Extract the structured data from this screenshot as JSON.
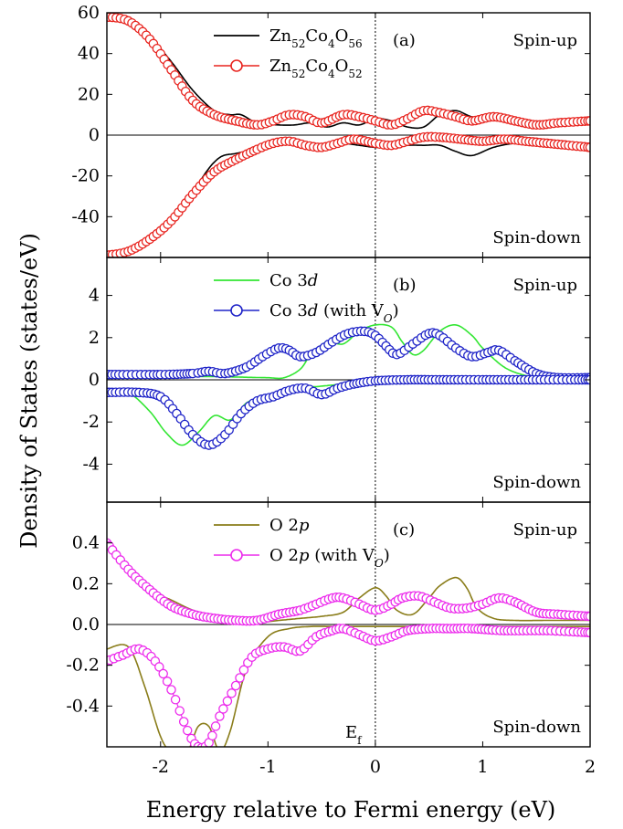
{
  "figure": {
    "ylabel": "Density of States (states/eV)",
    "xlabel": "Energy relative to Fermi energy (eV)",
    "fermi_label": "E",
    "fermi_label_sub": "f"
  },
  "chart_data": [
    {
      "type": "line",
      "panel_label": "(a)",
      "annotations": {
        "up": "Spin-up",
        "down": "Spin-down"
      },
      "xlim": [
        -2.5,
        2.0
      ],
      "ylim": [
        -60,
        60
      ],
      "x_ticks": [],
      "y_ticks": [
        60,
        40,
        20,
        0,
        -20,
        -40
      ],
      "legend": [
        {
          "parts": [
            [
              "Zn",
              "n"
            ],
            [
              "52",
              "s"
            ],
            [
              "Co",
              "n"
            ],
            [
              "4",
              "s"
            ],
            [
              "O",
              "n"
            ],
            [
              "56",
              "s"
            ]
          ],
          "style": "line",
          "color": "#000000"
        },
        {
          "parts": [
            [
              "Zn",
              "n"
            ],
            [
              "52",
              "s"
            ],
            [
              "Co",
              "n"
            ],
            [
              "4",
              "s"
            ],
            [
              "O",
              "n"
            ],
            [
              "52",
              "s"
            ]
          ],
          "style": "circle-line",
          "color": "#e8241f"
        }
      ],
      "series": [
        {
          "style": "line",
          "color": "#000000",
          "x": [
            -2.5,
            -2.3,
            -2.1,
            -1.9,
            -1.7,
            -1.5,
            -1.35,
            -1.25,
            -1.1,
            -0.9,
            -0.75,
            -0.6,
            -0.45,
            -0.3,
            -0.15,
            0.0,
            0.15,
            0.3,
            0.45,
            0.6,
            0.75,
            0.9,
            1.1,
            1.3,
            1.5,
            1.7,
            2.0
          ],
          "y": [
            57,
            56,
            48,
            36,
            22,
            12,
            10,
            10,
            6,
            5,
            5,
            6,
            4,
            6,
            5,
            8,
            7,
            4,
            4,
            10,
            12,
            9,
            8,
            7,
            6,
            6,
            7
          ]
        },
        {
          "style": "line",
          "color": "#000000",
          "x": [
            -2.5,
            -2.2,
            -2.0,
            -1.8,
            -1.6,
            -1.45,
            -1.3,
            -1.1,
            -0.9,
            -0.75,
            -0.6,
            -0.45,
            -0.3,
            -0.15,
            0.0,
            0.15,
            0.3,
            0.45,
            0.6,
            0.75,
            0.9,
            1.1,
            1.3,
            1.5,
            1.7,
            2.0
          ],
          "y": [
            -59,
            -55,
            -49,
            -38,
            -20,
            -11,
            -9,
            -7,
            -4,
            -3,
            -5,
            -4,
            -4,
            -5,
            -6,
            -6,
            -5,
            -5,
            -5,
            -8,
            -10,
            -6,
            -4,
            -4,
            -5,
            -7
          ]
        },
        {
          "style": "circle-line",
          "color": "#e8241f",
          "x": [
            -2.5,
            -2.3,
            -2.1,
            -1.9,
            -1.7,
            -1.5,
            -1.3,
            -1.1,
            -0.95,
            -0.8,
            -0.65,
            -0.5,
            -0.3,
            -0.15,
            0.0,
            0.15,
            0.3,
            0.45,
            0.6,
            0.75,
            0.9,
            1.1,
            1.3,
            1.5,
            1.7,
            2.0
          ],
          "y": [
            58,
            56,
            47,
            32,
            17,
            10,
            7,
            5,
            7,
            10,
            9,
            6,
            10,
            9,
            7,
            5,
            8,
            12,
            11,
            9,
            7,
            9,
            7,
            5,
            6,
            7
          ]
        },
        {
          "style": "circle-line",
          "color": "#e8241f",
          "x": [
            -2.5,
            -2.3,
            -2.1,
            -1.9,
            -1.7,
            -1.5,
            -1.3,
            -1.1,
            -0.95,
            -0.8,
            -0.65,
            -0.5,
            -0.35,
            -0.2,
            0.0,
            0.15,
            0.3,
            0.45,
            0.6,
            0.8,
            1.0,
            1.2,
            1.4,
            1.6,
            1.8,
            2.0
          ],
          "y": [
            -59,
            -57,
            -51,
            -42,
            -29,
            -18,
            -12,
            -7,
            -4,
            -3,
            -5,
            -6,
            -4,
            -2,
            -4,
            -5,
            -3,
            -1,
            -1,
            -2,
            -3,
            -2,
            -3,
            -4,
            -5,
            -6
          ]
        }
      ]
    },
    {
      "type": "line",
      "panel_label": "(b)",
      "annotations": {
        "up": "Spin-up",
        "down": "Spin-down"
      },
      "xlim": [
        -2.5,
        2.0
      ],
      "ylim": [
        -5.8,
        5.8
      ],
      "x_ticks": [],
      "y_ticks": [
        4,
        2,
        0,
        -2,
        -4
      ],
      "legend": [
        {
          "parts": [
            [
              "Co 3",
              "n"
            ],
            [
              "d",
              "i"
            ]
          ],
          "style": "line",
          "color": "#33e633"
        },
        {
          "parts": [
            [
              "Co 3",
              "n"
            ],
            [
              "d",
              "i"
            ],
            [
              " (with V",
              "n"
            ],
            [
              "O",
              "si"
            ],
            [
              ")",
              "n"
            ]
          ],
          "style": "circle-line",
          "color": "#1f24c8"
        }
      ],
      "series": [
        {
          "style": "line",
          "color": "#33e633",
          "x": [
            -2.5,
            -2.0,
            -1.5,
            -1.2,
            -1.0,
            -0.85,
            -0.7,
            -0.6,
            -0.45,
            -0.3,
            -0.15,
            0.0,
            0.15,
            0.25,
            0.35,
            0.45,
            0.6,
            0.75,
            0.9,
            1.0,
            1.2,
            1.4,
            1.6,
            2.0
          ],
          "y": [
            0.15,
            0.15,
            0.15,
            0.12,
            0.1,
            0.1,
            0.5,
            1.2,
            1.8,
            1.7,
            2.3,
            2.6,
            2.5,
            1.8,
            1.2,
            1.4,
            2.3,
            2.6,
            2.1,
            1.5,
            0.6,
            0.2,
            0.05,
            0.05
          ]
        },
        {
          "style": "line",
          "color": "#33e633",
          "x": [
            -2.5,
            -2.3,
            -2.1,
            -1.95,
            -1.8,
            -1.65,
            -1.5,
            -1.35,
            -1.2,
            -1.05,
            -0.9,
            -0.7,
            -0.5,
            -0.3,
            -0.1,
            0.2,
            0.6,
            1.0,
            1.5,
            2.0
          ],
          "y": [
            -0.5,
            -0.6,
            -1.5,
            -2.5,
            -3.1,
            -2.5,
            -1.7,
            -1.9,
            -1.1,
            -0.8,
            -0.6,
            -0.4,
            -0.3,
            -0.2,
            -0.1,
            -0.05,
            0.0,
            0.0,
            0.0,
            0.0
          ]
        },
        {
          "style": "circle-line",
          "color": "#1f24c8",
          "x": [
            -2.5,
            -2.0,
            -1.7,
            -1.55,
            -1.4,
            -1.2,
            -1.05,
            -0.9,
            -0.8,
            -0.7,
            -0.55,
            -0.4,
            -0.25,
            -0.1,
            0.0,
            0.1,
            0.2,
            0.35,
            0.5,
            0.6,
            0.75,
            0.9,
            1.05,
            1.15,
            1.3,
            1.5,
            1.7,
            2.0
          ],
          "y": [
            0.25,
            0.25,
            0.3,
            0.4,
            0.3,
            0.6,
            1.1,
            1.5,
            1.4,
            1.1,
            1.3,
            1.8,
            2.2,
            2.3,
            2.1,
            1.6,
            1.2,
            1.7,
            2.2,
            2.1,
            1.5,
            1.1,
            1.3,
            1.4,
            0.9,
            0.3,
            0.1,
            0.1
          ]
        },
        {
          "style": "circle-line",
          "color": "#1f24c8",
          "x": [
            -2.5,
            -2.2,
            -2.0,
            -1.85,
            -1.7,
            -1.55,
            -1.4,
            -1.25,
            -1.1,
            -0.95,
            -0.8,
            -0.65,
            -0.5,
            -0.35,
            -0.2,
            0.0,
            0.3,
            0.6,
            1.0,
            1.5,
            2.0
          ],
          "y": [
            -0.6,
            -0.6,
            -0.8,
            -1.6,
            -2.6,
            -3.1,
            -2.6,
            -1.6,
            -1.0,
            -0.8,
            -0.5,
            -0.4,
            -0.7,
            -0.4,
            -0.2,
            -0.05,
            0.0,
            0.0,
            0.0,
            0.0,
            0.0
          ]
        }
      ]
    },
    {
      "type": "line",
      "panel_label": "(c)",
      "annotations": {
        "up": "Spin-up",
        "down": "Spin-down"
      },
      "xlim": [
        -2.5,
        2.0
      ],
      "ylim": [
        -0.6,
        0.6
      ],
      "x_ticks": [
        -2,
        -1,
        0,
        1,
        2
      ],
      "y_ticks": [
        0.4,
        0.2,
        0.0,
        -0.2,
        -0.4
      ],
      "y_tick_format": "fixed1",
      "legend": [
        {
          "parts": [
            [
              "O 2",
              "n"
            ],
            [
              "p",
              "i"
            ]
          ],
          "style": "line",
          "color": "#8a7d1a"
        },
        {
          "parts": [
            [
              "O 2",
              "n"
            ],
            [
              "p",
              "i"
            ],
            [
              " (with V",
              "n"
            ],
            [
              "O",
              "si"
            ],
            [
              ")",
              "n"
            ]
          ],
          "style": "circle-line",
          "color": "#ec2bec"
        }
      ],
      "series": [
        {
          "style": "line",
          "color": "#8a7d1a",
          "x": [
            -2.5,
            -2.3,
            -2.1,
            -1.9,
            -1.7,
            -1.5,
            -1.3,
            -1.1,
            -0.9,
            -0.7,
            -0.5,
            -0.3,
            -0.15,
            0.0,
            0.1,
            0.2,
            0.35,
            0.5,
            0.6,
            0.75,
            0.85,
            0.95,
            1.1,
            1.3,
            1.6,
            2.0
          ],
          "y": [
            0.4,
            0.28,
            0.17,
            0.12,
            0.07,
            0.04,
            0.02,
            0.01,
            0.02,
            0.03,
            0.04,
            0.06,
            0.13,
            0.18,
            0.14,
            0.07,
            0.05,
            0.13,
            0.19,
            0.23,
            0.18,
            0.08,
            0.03,
            0.02,
            0.02,
            0.02
          ]
        },
        {
          "style": "line",
          "color": "#8a7d1a",
          "x": [
            -2.5,
            -2.3,
            -2.15,
            -2.0,
            -1.9,
            -1.75,
            -1.65,
            -1.55,
            -1.45,
            -1.35,
            -1.2,
            -1.0,
            -0.8,
            -0.6,
            -0.4,
            -0.2,
            0.0,
            0.3,
            0.6,
            1.0,
            1.5,
            2.0
          ],
          "y": [
            -0.12,
            -0.11,
            -0.3,
            -0.55,
            -0.62,
            -0.62,
            -0.5,
            -0.5,
            -0.62,
            -0.52,
            -0.22,
            -0.06,
            -0.02,
            -0.01,
            -0.01,
            -0.01,
            -0.01,
            -0.01,
            -0.01,
            -0.01,
            -0.01,
            -0.01
          ]
        },
        {
          "style": "circle-line",
          "color": "#ec2bec",
          "x": [
            -2.5,
            -2.3,
            -2.1,
            -1.9,
            -1.7,
            -1.5,
            -1.3,
            -1.1,
            -0.9,
            -0.7,
            -0.55,
            -0.4,
            -0.3,
            -0.15,
            0.0,
            0.15,
            0.25,
            0.4,
            0.55,
            0.7,
            0.85,
            1.0,
            1.15,
            1.3,
            1.5,
            1.7,
            2.0
          ],
          "y": [
            0.4,
            0.27,
            0.17,
            0.09,
            0.05,
            0.03,
            0.02,
            0.02,
            0.05,
            0.07,
            0.1,
            0.13,
            0.13,
            0.1,
            0.07,
            0.1,
            0.13,
            0.14,
            0.11,
            0.08,
            0.08,
            0.1,
            0.13,
            0.11,
            0.06,
            0.05,
            0.04
          ]
        },
        {
          "style": "circle-line",
          "color": "#ec2bec",
          "x": [
            -2.5,
            -2.35,
            -2.2,
            -2.05,
            -1.9,
            -1.75,
            -1.65,
            -1.55,
            -1.45,
            -1.3,
            -1.15,
            -1.0,
            -0.85,
            -0.7,
            -0.55,
            -0.4,
            -0.3,
            -0.15,
            0.0,
            0.15,
            0.3,
            0.5,
            0.7,
            0.9,
            1.2,
            1.6,
            2.0
          ],
          "y": [
            -0.18,
            -0.15,
            -0.12,
            -0.18,
            -0.32,
            -0.52,
            -0.6,
            -0.58,
            -0.45,
            -0.3,
            -0.16,
            -0.12,
            -0.11,
            -0.13,
            -0.06,
            -0.03,
            -0.02,
            -0.05,
            -0.08,
            -0.06,
            -0.03,
            -0.02,
            -0.02,
            -0.02,
            -0.03,
            -0.03,
            -0.04
          ]
        }
      ]
    }
  ]
}
